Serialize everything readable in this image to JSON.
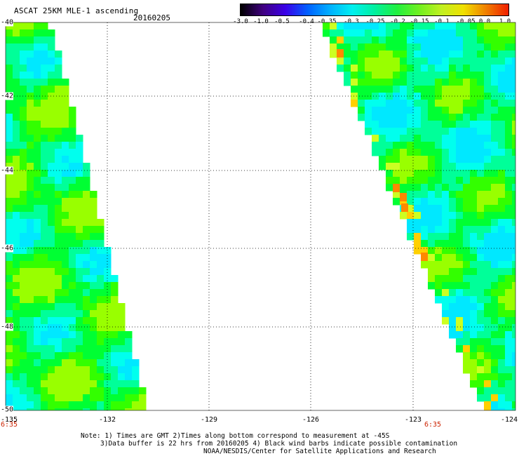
{
  "header": {
    "title": "ASCAT 25KM MLE-1 ascending",
    "date": "20160205"
  },
  "colorbar": {
    "labels": [
      "-3.0",
      "-1.0",
      "-0.5",
      "-0.4",
      "-0.35",
      "-0.3",
      "-0.25",
      "-0.2",
      "-0.15",
      "-0.1",
      "-0.05",
      "0.0",
      "1.0"
    ],
    "colors": [
      "#000000",
      "#400080",
      "#3a00e8",
      "#0060ff",
      "#00b0ff",
      "#00f0f0",
      "#00f0a0",
      "#20f040",
      "#70f020",
      "#c0f020",
      "#f0e000",
      "#f08000",
      "#f02000"
    ]
  },
  "map": {
    "lon_range": [
      -135,
      -124
    ],
    "lat_range": [
      -50,
      -40
    ],
    "x_ticks": [
      "-135",
      "-132",
      "-129",
      "-126",
      "-123",
      "-124"
    ],
    "y_ticks": [
      "-40",
      "-42",
      "-44",
      "-46",
      "-48",
      "-50"
    ],
    "times": [
      "6:35",
      "6:35"
    ],
    "swath_colors": [
      "#00ff99",
      "#00ff33",
      "#33ff00",
      "#99ff00",
      "#ccff22",
      "#00ffee",
      "#00e8ff",
      "#ffd000",
      "#ff8800"
    ]
  },
  "notes": {
    "line1": "Note: 1) Times are GMT 2)Times along bottom correspond to measurement at -45S",
    "line2": "3)Data buffer is 22 hrs from 20160205 4) Black wind barbs indicate possible contamination",
    "line3": "NOAA/NESDIS/Center for Satellite Applications and Research"
  }
}
